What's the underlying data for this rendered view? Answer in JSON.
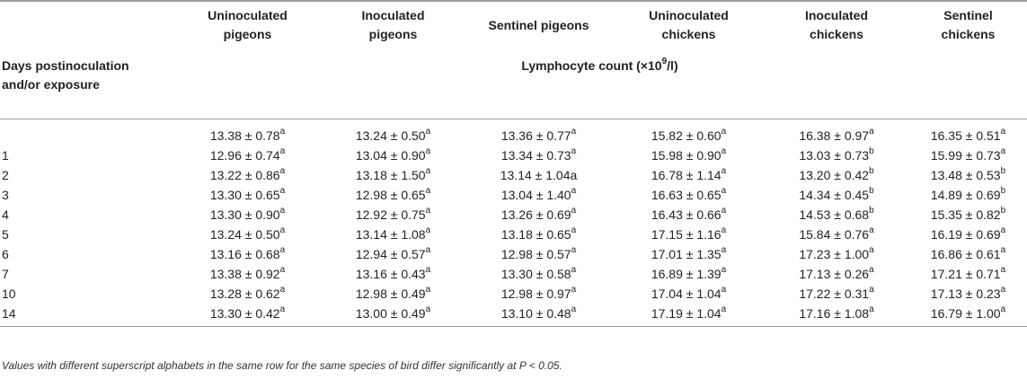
{
  "table": {
    "columns": [
      "Uninoculated\npigeons",
      "Inoculated\npigeons",
      "Sentinel pigeons",
      "Uninoculated\nchickens",
      "Inoculated\nchickens",
      "Sentinel\nchickens"
    ],
    "days_header": "Days postinoculation\nand/or exposure",
    "measure_label": "Lymphocyte count (×10",
    "measure_sup": "9",
    "measure_tail": "/l)",
    "rows": [
      {
        "day": "",
        "cells": [
          [
            "13.38 ± 0.78",
            "a"
          ],
          [
            "13.24 ± 0.50",
            "a"
          ],
          [
            "13.36 ± 0.77",
            "a"
          ],
          [
            "15.82 ± 0.60",
            "a"
          ],
          [
            "16.38 ± 0.97",
            "a"
          ],
          [
            "16.35 ± 0.51",
            "a"
          ]
        ]
      },
      {
        "day": "1",
        "cells": [
          [
            "12.96 ± 0.74",
            "a"
          ],
          [
            "13.04 ± 0.90",
            "a"
          ],
          [
            "13.34 ± 0.73",
            "a"
          ],
          [
            "15.98 ± 0.90",
            "a"
          ],
          [
            "13.03 ± 0.73",
            "b"
          ],
          [
            "15.99 ± 0.73",
            "a"
          ]
        ]
      },
      {
        "day": "2",
        "cells": [
          [
            "13.22 ± 0.86",
            "a"
          ],
          [
            "13.18 ± 1.50",
            "a"
          ],
          [
            "13.14 ± 1.04a",
            ""
          ],
          [
            "16.78 ± 1.14",
            "a"
          ],
          [
            "13.20 ± 0.42",
            "b"
          ],
          [
            "13.48 ± 0.53",
            "b"
          ]
        ]
      },
      {
        "day": "3",
        "cells": [
          [
            "13.30 ± 0.65",
            "a"
          ],
          [
            "12.98 ± 0.65",
            "a"
          ],
          [
            "13.04 ± 1.40",
            "a"
          ],
          [
            "16.63 ± 0.65",
            "a"
          ],
          [
            "14.34 ± 0.45",
            "b"
          ],
          [
            "14.89 ± 0.69",
            "b"
          ]
        ]
      },
      {
        "day": "4",
        "cells": [
          [
            "13.30 ± 0.90",
            "a"
          ],
          [
            "12.92 ± 0.75",
            "a"
          ],
          [
            "13.26 ± 0.69",
            "a"
          ],
          [
            "16.43 ± 0.66",
            "a"
          ],
          [
            "14.53 ± 0.68",
            "b"
          ],
          [
            "15.35 ± 0.82",
            "b"
          ]
        ]
      },
      {
        "day": "5",
        "cells": [
          [
            "13.24 ± 0.50",
            "a"
          ],
          [
            "13.14 ± 1.08",
            "a"
          ],
          [
            "13.18 ± 0.65",
            "a"
          ],
          [
            "17.15 ± 1.16",
            "a"
          ],
          [
            "15.84 ± 0.76",
            "a"
          ],
          [
            "16.19 ± 0.69",
            "a"
          ]
        ]
      },
      {
        "day": "6",
        "cells": [
          [
            "13.16 ± 0.68",
            "a"
          ],
          [
            "12.94 ± 0.57",
            "a"
          ],
          [
            "12.98 ± 0.57",
            "a"
          ],
          [
            "17.01 ± 1.35",
            "a"
          ],
          [
            "17.23 ± 1.00",
            "a"
          ],
          [
            "16.86 ± 0.61",
            "a"
          ]
        ]
      },
      {
        "day": "7",
        "cells": [
          [
            "13.38 ± 0.92",
            "a"
          ],
          [
            "13.16 ± 0.43",
            "a"
          ],
          [
            "13.30 ± 0.58",
            "a"
          ],
          [
            "16.89 ± 1.39",
            "a"
          ],
          [
            "17.13 ± 0.26",
            "a"
          ],
          [
            "17.21 ± 0.71",
            "a"
          ]
        ]
      },
      {
        "day": "10",
        "cells": [
          [
            "13.28 ± 0.62",
            "a"
          ],
          [
            "12.98 ± 0.49",
            "a"
          ],
          [
            "12.98 ± 0.97",
            "a"
          ],
          [
            "17.04 ± 1.04",
            "a"
          ],
          [
            "17.22 ± 0.31",
            "a"
          ],
          [
            "17.13 ± 0.23",
            "a"
          ]
        ]
      },
      {
        "day": "14",
        "cells": [
          [
            "13.30 ± 0.42",
            "a"
          ],
          [
            "13.00 ± 0.49",
            "a"
          ],
          [
            "13.10 ± 0.48",
            "a"
          ],
          [
            "17.19 ± 1.04",
            "a"
          ],
          [
            "17.16 ± 1.08",
            "a"
          ],
          [
            "16.79 ± 1.00",
            "a"
          ]
        ]
      }
    ]
  },
  "footnote": "Values with different superscript alphabets in the same row for the same species of bird differ significantly at P < 0.05."
}
